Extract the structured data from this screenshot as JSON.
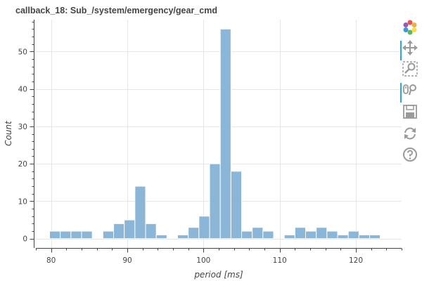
{
  "header": {
    "title": "callback_18: Sub_/system/emergency/gear_cmd"
  },
  "chart_data": {
    "type": "bar",
    "title": "callback_18: Sub_/system/emergency/gear_cmd",
    "xlabel": "period [ms]",
    "ylabel": "Count",
    "xlim": [
      78,
      126
    ],
    "ylim": [
      -2.5,
      58.5
    ],
    "x_ticks": [
      "80",
      "90",
      "100",
      "110",
      "120"
    ],
    "x_tick_values": [
      80,
      90,
      100,
      110,
      120
    ],
    "y_ticks": [
      "0",
      "10",
      "20",
      "30",
      "40",
      "50"
    ],
    "y_tick_values": [
      0,
      10,
      20,
      30,
      40,
      50
    ],
    "bin_width": 1.4,
    "bar_color": "#7eaed3",
    "bins": [
      {
        "start": 79.8,
        "value": 2
      },
      {
        "start": 81.2,
        "value": 2
      },
      {
        "start": 82.6,
        "value": 2
      },
      {
        "start": 84.0,
        "value": 2
      },
      {
        "start": 86.8,
        "value": 2
      },
      {
        "start": 88.2,
        "value": 4
      },
      {
        "start": 89.6,
        "value": 5
      },
      {
        "start": 91.0,
        "value": 14
      },
      {
        "start": 92.4,
        "value": 4
      },
      {
        "start": 93.8,
        "value": 1
      },
      {
        "start": 96.6,
        "value": 1
      },
      {
        "start": 98.0,
        "value": 3
      },
      {
        "start": 99.4,
        "value": 6
      },
      {
        "start": 100.8,
        "value": 20
      },
      {
        "start": 102.2,
        "value": 56
      },
      {
        "start": 103.6,
        "value": 18
      },
      {
        "start": 105.0,
        "value": 2
      },
      {
        "start": 106.4,
        "value": 3
      },
      {
        "start": 107.8,
        "value": 2
      },
      {
        "start": 110.6,
        "value": 1
      },
      {
        "start": 112.0,
        "value": 3
      },
      {
        "start": 113.4,
        "value": 2
      },
      {
        "start": 114.8,
        "value": 3
      },
      {
        "start": 116.2,
        "value": 2
      },
      {
        "start": 117.6,
        "value": 1
      },
      {
        "start": 119.0,
        "value": 2
      },
      {
        "start": 120.4,
        "value": 1
      },
      {
        "start": 121.8,
        "value": 1
      }
    ],
    "grid": true,
    "legend": "none"
  },
  "toolbar": {
    "items": [
      {
        "icon": "bokeh-logo-icon",
        "active": false
      },
      {
        "icon": "pan-icon",
        "active": true
      },
      {
        "icon": "box-zoom-icon",
        "active": false
      },
      {
        "icon": "wheel-zoom-icon",
        "active": true
      },
      {
        "icon": "save-icon",
        "active": false
      },
      {
        "icon": "reset-icon",
        "active": false
      },
      {
        "icon": "help-icon",
        "active": false
      }
    ],
    "icon_color": "#9a9a9a",
    "active_color": "#26aae1"
  }
}
